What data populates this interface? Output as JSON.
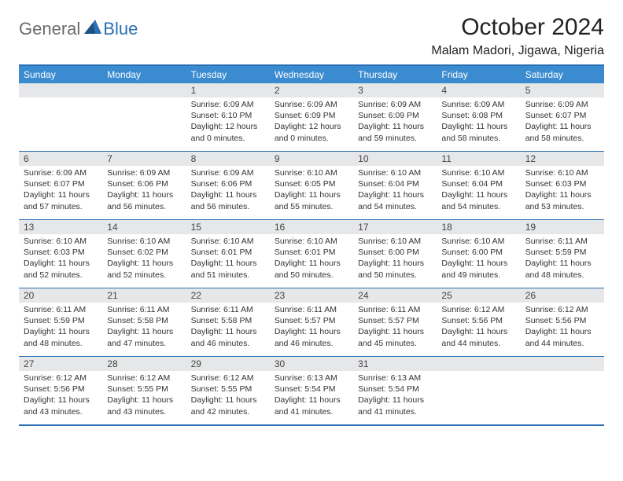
{
  "brand": {
    "general": "General",
    "blue": "Blue"
  },
  "header": {
    "title": "October 2024",
    "location": "Malam Madori, Jigawa, Nigeria"
  },
  "colors": {
    "header_bar": "#3b8bd0",
    "border": "#2a6fb3",
    "daynum_bg": "#e6e7e8",
    "text": "#333333"
  },
  "dow": [
    "Sunday",
    "Monday",
    "Tuesday",
    "Wednesday",
    "Thursday",
    "Friday",
    "Saturday"
  ],
  "weeks": [
    [
      null,
      null,
      {
        "n": "1",
        "sr": "Sunrise: 6:09 AM",
        "ss": "Sunset: 6:10 PM",
        "dl": "Daylight: 12 hours and 0 minutes."
      },
      {
        "n": "2",
        "sr": "Sunrise: 6:09 AM",
        "ss": "Sunset: 6:09 PM",
        "dl": "Daylight: 12 hours and 0 minutes."
      },
      {
        "n": "3",
        "sr": "Sunrise: 6:09 AM",
        "ss": "Sunset: 6:09 PM",
        "dl": "Daylight: 11 hours and 59 minutes."
      },
      {
        "n": "4",
        "sr": "Sunrise: 6:09 AM",
        "ss": "Sunset: 6:08 PM",
        "dl": "Daylight: 11 hours and 58 minutes."
      },
      {
        "n": "5",
        "sr": "Sunrise: 6:09 AM",
        "ss": "Sunset: 6:07 PM",
        "dl": "Daylight: 11 hours and 58 minutes."
      }
    ],
    [
      {
        "n": "6",
        "sr": "Sunrise: 6:09 AM",
        "ss": "Sunset: 6:07 PM",
        "dl": "Daylight: 11 hours and 57 minutes."
      },
      {
        "n": "7",
        "sr": "Sunrise: 6:09 AM",
        "ss": "Sunset: 6:06 PM",
        "dl": "Daylight: 11 hours and 56 minutes."
      },
      {
        "n": "8",
        "sr": "Sunrise: 6:09 AM",
        "ss": "Sunset: 6:06 PM",
        "dl": "Daylight: 11 hours and 56 minutes."
      },
      {
        "n": "9",
        "sr": "Sunrise: 6:10 AM",
        "ss": "Sunset: 6:05 PM",
        "dl": "Daylight: 11 hours and 55 minutes."
      },
      {
        "n": "10",
        "sr": "Sunrise: 6:10 AM",
        "ss": "Sunset: 6:04 PM",
        "dl": "Daylight: 11 hours and 54 minutes."
      },
      {
        "n": "11",
        "sr": "Sunrise: 6:10 AM",
        "ss": "Sunset: 6:04 PM",
        "dl": "Daylight: 11 hours and 54 minutes."
      },
      {
        "n": "12",
        "sr": "Sunrise: 6:10 AM",
        "ss": "Sunset: 6:03 PM",
        "dl": "Daylight: 11 hours and 53 minutes."
      }
    ],
    [
      {
        "n": "13",
        "sr": "Sunrise: 6:10 AM",
        "ss": "Sunset: 6:03 PM",
        "dl": "Daylight: 11 hours and 52 minutes."
      },
      {
        "n": "14",
        "sr": "Sunrise: 6:10 AM",
        "ss": "Sunset: 6:02 PM",
        "dl": "Daylight: 11 hours and 52 minutes."
      },
      {
        "n": "15",
        "sr": "Sunrise: 6:10 AM",
        "ss": "Sunset: 6:01 PM",
        "dl": "Daylight: 11 hours and 51 minutes."
      },
      {
        "n": "16",
        "sr": "Sunrise: 6:10 AM",
        "ss": "Sunset: 6:01 PM",
        "dl": "Daylight: 11 hours and 50 minutes."
      },
      {
        "n": "17",
        "sr": "Sunrise: 6:10 AM",
        "ss": "Sunset: 6:00 PM",
        "dl": "Daylight: 11 hours and 50 minutes."
      },
      {
        "n": "18",
        "sr": "Sunrise: 6:10 AM",
        "ss": "Sunset: 6:00 PM",
        "dl": "Daylight: 11 hours and 49 minutes."
      },
      {
        "n": "19",
        "sr": "Sunrise: 6:11 AM",
        "ss": "Sunset: 5:59 PM",
        "dl": "Daylight: 11 hours and 48 minutes."
      }
    ],
    [
      {
        "n": "20",
        "sr": "Sunrise: 6:11 AM",
        "ss": "Sunset: 5:59 PM",
        "dl": "Daylight: 11 hours and 48 minutes."
      },
      {
        "n": "21",
        "sr": "Sunrise: 6:11 AM",
        "ss": "Sunset: 5:58 PM",
        "dl": "Daylight: 11 hours and 47 minutes."
      },
      {
        "n": "22",
        "sr": "Sunrise: 6:11 AM",
        "ss": "Sunset: 5:58 PM",
        "dl": "Daylight: 11 hours and 46 minutes."
      },
      {
        "n": "23",
        "sr": "Sunrise: 6:11 AM",
        "ss": "Sunset: 5:57 PM",
        "dl": "Daylight: 11 hours and 46 minutes."
      },
      {
        "n": "24",
        "sr": "Sunrise: 6:11 AM",
        "ss": "Sunset: 5:57 PM",
        "dl": "Daylight: 11 hours and 45 minutes."
      },
      {
        "n": "25",
        "sr": "Sunrise: 6:12 AM",
        "ss": "Sunset: 5:56 PM",
        "dl": "Daylight: 11 hours and 44 minutes."
      },
      {
        "n": "26",
        "sr": "Sunrise: 6:12 AM",
        "ss": "Sunset: 5:56 PM",
        "dl": "Daylight: 11 hours and 44 minutes."
      }
    ],
    [
      {
        "n": "27",
        "sr": "Sunrise: 6:12 AM",
        "ss": "Sunset: 5:56 PM",
        "dl": "Daylight: 11 hours and 43 minutes."
      },
      {
        "n": "28",
        "sr": "Sunrise: 6:12 AM",
        "ss": "Sunset: 5:55 PM",
        "dl": "Daylight: 11 hours and 43 minutes."
      },
      {
        "n": "29",
        "sr": "Sunrise: 6:12 AM",
        "ss": "Sunset: 5:55 PM",
        "dl": "Daylight: 11 hours and 42 minutes."
      },
      {
        "n": "30",
        "sr": "Sunrise: 6:13 AM",
        "ss": "Sunset: 5:54 PM",
        "dl": "Daylight: 11 hours and 41 minutes."
      },
      {
        "n": "31",
        "sr": "Sunrise: 6:13 AM",
        "ss": "Sunset: 5:54 PM",
        "dl": "Daylight: 11 hours and 41 minutes."
      },
      null,
      null
    ]
  ]
}
